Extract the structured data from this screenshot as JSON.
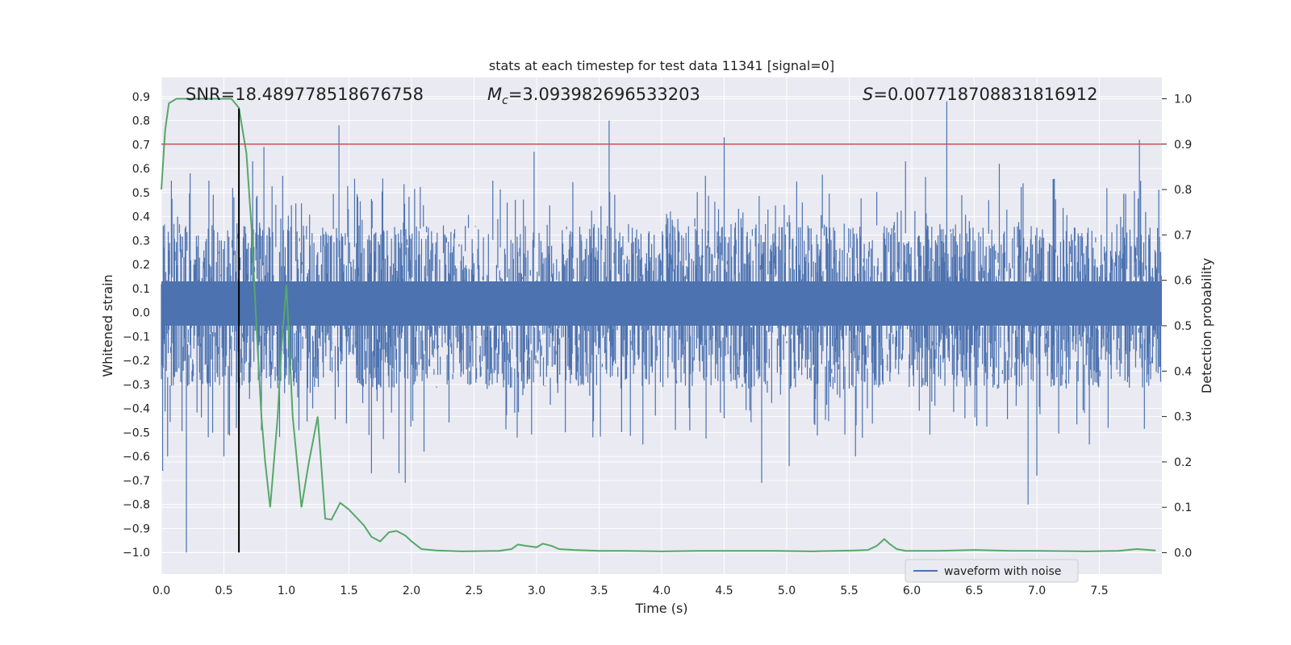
{
  "chart_data": {
    "type": "line",
    "title": "stats at each timestep for test data 11341 [signal=0]",
    "xlabel": "Time (s)",
    "ylabel_left": "Whitened strain",
    "ylabel_right": "Detection probability",
    "xlim": [
      0.0,
      8.0
    ],
    "ylim_left": [
      -1.09,
      0.98
    ],
    "ylim_right": [
      -0.047,
      1.047
    ],
    "x_ticks": [
      "0.0",
      "0.5",
      "1.0",
      "1.5",
      "2.0",
      "2.5",
      "3.0",
      "3.5",
      "4.0",
      "4.5",
      "5.0",
      "5.5",
      "6.0",
      "6.5",
      "7.0",
      "7.5"
    ],
    "x_tick_values": [
      0.0,
      0.5,
      1.0,
      1.5,
      2.0,
      2.5,
      3.0,
      3.5,
      4.0,
      4.5,
      5.0,
      5.5,
      6.0,
      6.5,
      7.0,
      7.5
    ],
    "y_left_ticks": [
      "0.9",
      "0.8",
      "0.7",
      "0.6",
      "0.5",
      "0.4",
      "0.3",
      "0.2",
      "0.1",
      "0.0",
      "−0.1",
      "−0.2",
      "−0.3",
      "−0.4",
      "−0.5",
      "−0.6",
      "−0.7",
      "−0.8",
      "−0.9",
      "−1.0"
    ],
    "y_left_tick_values": [
      0.9,
      0.8,
      0.7,
      0.6,
      0.5,
      0.4,
      0.3,
      0.2,
      0.1,
      0.0,
      -0.1,
      -0.2,
      -0.3,
      -0.4,
      -0.5,
      -0.6,
      -0.7,
      -0.8,
      -0.9,
      -1.0
    ],
    "y_right_ticks": [
      "1.0",
      "0.9",
      "0.8",
      "0.7",
      "0.6",
      "0.5",
      "0.4",
      "0.3",
      "0.2",
      "0.1",
      "0.0"
    ],
    "y_right_tick_values": [
      1.0,
      0.9,
      0.8,
      0.7,
      0.6,
      0.5,
      0.4,
      0.3,
      0.2,
      0.1,
      0.0
    ],
    "grid": true,
    "annotations": {
      "snr": "SNR=18.489778518676758",
      "mc_symbol": "M",
      "mc_subscript": "c",
      "mc_value": "=3.093982696533203",
      "s_symbol": "S",
      "s_value": "=0.007718708831816912"
    },
    "threshold_right": 0.9,
    "vline_x": 0.62,
    "vline_ylim_left": [
      -1.0,
      0.85
    ],
    "legend": {
      "label": "waveform with noise",
      "placement": "lower-right"
    },
    "colors": {
      "waveform": "#4c72b0",
      "probability": "#55a868",
      "threshold": "#c44e52",
      "vline": "#000000",
      "plot_bg": "#eaeaf2",
      "grid": "#ffffff"
    },
    "series": [
      {
        "name": "waveform with noise",
        "axis": "left",
        "envelope": {
          "typical_range": [
            -0.25,
            0.3
          ],
          "band_core": [
            -0.055,
            0.13
          ],
          "spikes": [
            [
              0.01,
              -0.66
            ],
            [
              0.05,
              -0.6
            ],
            [
              0.08,
              0.55
            ],
            [
              0.13,
              0.4
            ],
            [
              0.2,
              -1.0
            ],
            [
              0.23,
              0.58
            ],
            [
              0.38,
              0.55
            ],
            [
              0.5,
              -0.6
            ],
            [
              0.58,
              0.48
            ],
            [
              0.73,
              0.63
            ],
            [
              0.82,
              0.69
            ],
            [
              0.97,
              0.57
            ],
            [
              1.1,
              -0.49
            ],
            [
              1.42,
              0.78
            ],
            [
              1.68,
              -0.67
            ],
            [
              1.9,
              -0.67
            ],
            [
              1.95,
              -0.71
            ],
            [
              2.1,
              -0.58
            ],
            [
              2.65,
              0.55
            ],
            [
              2.98,
              0.67
            ],
            [
              3.45,
              -0.52
            ],
            [
              3.58,
              0.8
            ],
            [
              3.85,
              -0.55
            ],
            [
              4.5,
              0.73
            ],
            [
              4.8,
              -0.71
            ],
            [
              5.02,
              -0.64
            ],
            [
              5.55,
              -0.6
            ],
            [
              5.95,
              0.63
            ],
            [
              6.28,
              0.88
            ],
            [
              6.7,
              0.62
            ],
            [
              6.93,
              -0.8
            ],
            [
              7.0,
              -0.68
            ],
            [
              7.42,
              -0.55
            ],
            [
              7.82,
              0.72
            ],
            [
              7.95,
              0.25
            ]
          ]
        }
      },
      {
        "name": "",
        "axis": "right",
        "x": [
          0.0,
          0.03,
          0.06,
          0.12,
          0.2,
          0.3,
          0.4,
          0.5,
          0.56,
          0.62,
          0.68,
          0.72,
          0.76,
          0.8,
          0.83,
          0.87,
          0.93,
          0.96,
          1.0,
          1.05,
          1.12,
          1.18,
          1.25,
          1.31,
          1.36,
          1.43,
          1.5,
          1.62,
          1.68,
          1.75,
          1.82,
          1.88,
          1.95,
          2.0,
          2.08,
          2.2,
          2.4,
          2.7,
          2.8,
          2.85,
          2.92,
          3.0,
          3.05,
          3.12,
          3.18,
          3.3,
          3.5,
          3.7,
          4.0,
          4.3,
          4.6,
          4.9,
          5.2,
          5.4,
          5.55,
          5.65,
          5.72,
          5.78,
          5.82,
          5.88,
          5.95,
          6.2,
          6.5,
          6.8,
          7.0,
          7.4,
          7.65,
          7.8,
          7.95
        ],
        "values": [
          0.8,
          0.93,
          0.99,
          1.0,
          1.0,
          1.0,
          1.0,
          1.0,
          1.0,
          0.98,
          0.88,
          0.72,
          0.5,
          0.3,
          0.2,
          0.1,
          0.3,
          0.45,
          0.59,
          0.3,
          0.1,
          0.2,
          0.3,
          0.075,
          0.073,
          0.11,
          0.095,
          0.06,
          0.035,
          0.025,
          0.045,
          0.048,
          0.038,
          0.025,
          0.008,
          0.005,
          0.003,
          0.004,
          0.008,
          0.018,
          0.015,
          0.012,
          0.02,
          0.015,
          0.008,
          0.006,
          0.004,
          0.004,
          0.003,
          0.004,
          0.004,
          0.004,
          0.003,
          0.004,
          0.005,
          0.006,
          0.015,
          0.03,
          0.02,
          0.008,
          0.004,
          0.004,
          0.006,
          0.004,
          0.004,
          0.003,
          0.004,
          0.008,
          0.005
        ]
      }
    ]
  }
}
